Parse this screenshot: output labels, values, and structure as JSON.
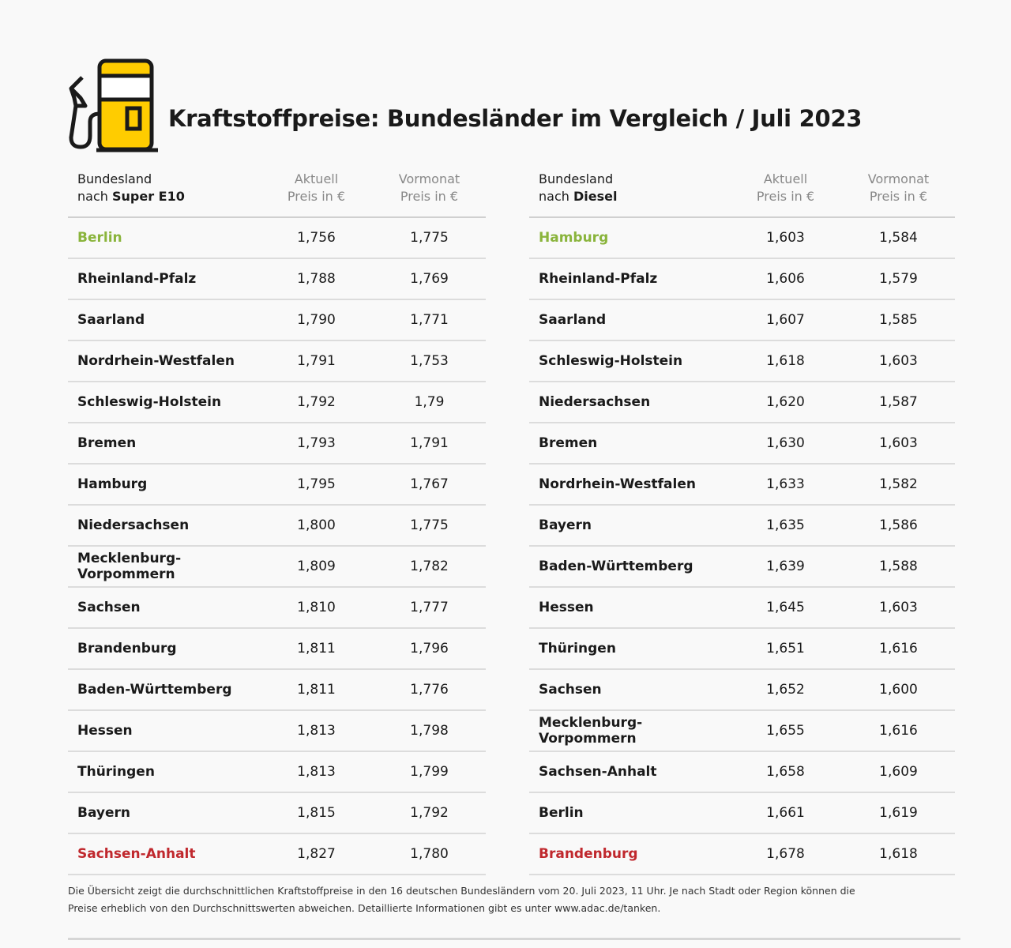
{
  "title": "Kraftstoffpreise: Bundesländer im Vergleich / Juli 2023",
  "colors": {
    "accent": "#ffcc00",
    "best": "#8ab43c",
    "worst": "#c0282d"
  },
  "icon": "fuel-pump-icon",
  "tables": [
    {
      "header": {
        "line1": "Bundesland",
        "line2_prefix": "nach ",
        "line2_bold": "Super E10",
        "current_1": "Aktuell",
        "current_2": "Preis in €",
        "prev_1": "Vormonat",
        "prev_2": "Preis in €"
      },
      "rows": [
        {
          "state": "Berlin",
          "current": "1,756",
          "previous": "1,775",
          "highlight": "best"
        },
        {
          "state": "Rheinland-Pfalz",
          "current": "1,788",
          "previous": "1,769"
        },
        {
          "state": "Saarland",
          "current": "1,790",
          "previous": "1,771"
        },
        {
          "state": "Nordrhein-Westfalen",
          "current": "1,791",
          "previous": "1,753"
        },
        {
          "state": "Schleswig-Holstein",
          "current": "1,792",
          "previous": "1,79"
        },
        {
          "state": "Bremen",
          "current": "1,793",
          "previous": "1,791"
        },
        {
          "state": "Hamburg",
          "current": "1,795",
          "previous": "1,767"
        },
        {
          "state": "Niedersachsen",
          "current": "1,800",
          "previous": "1,775"
        },
        {
          "state": "Mecklenburg-Vorpommern",
          "current": "1,809",
          "previous": "1,782"
        },
        {
          "state": "Sachsen",
          "current": "1,810",
          "previous": "1,777"
        },
        {
          "state": "Brandenburg",
          "current": "1,811",
          "previous": "1,796"
        },
        {
          "state": "Baden-Württemberg",
          "current": "1,811",
          "previous": "1,776"
        },
        {
          "state": "Hessen",
          "current": "1,813",
          "previous": "1,798"
        },
        {
          "state": "Thüringen",
          "current": "1,813",
          "previous": "1,799"
        },
        {
          "state": "Bayern",
          "current": "1,815",
          "previous": "1,792"
        },
        {
          "state": "Sachsen-Anhalt",
          "current": "1,827",
          "previous": "1,780",
          "highlight": "worst"
        }
      ]
    },
    {
      "header": {
        "line1": "Bundesland",
        "line2_prefix": "nach ",
        "line2_bold": "Diesel",
        "current_1": "Aktuell",
        "current_2": "Preis in €",
        "prev_1": "Vormonat",
        "prev_2": "Preis in €"
      },
      "rows": [
        {
          "state": "Hamburg",
          "current": "1,603",
          "previous": "1,584",
          "highlight": "best"
        },
        {
          "state": "Rheinland-Pfalz",
          "current": "1,606",
          "previous": "1,579"
        },
        {
          "state": "Saarland",
          "current": "1,607",
          "previous": "1,585"
        },
        {
          "state": "Schleswig-Holstein",
          "current": "1,618",
          "previous": "1,603"
        },
        {
          "state": "Niedersachsen",
          "current": "1,620",
          "previous": "1,587"
        },
        {
          "state": "Bremen",
          "current": "1,630",
          "previous": "1,603"
        },
        {
          "state": "Nordrhein-Westfalen",
          "current": "1,633",
          "previous": "1,582"
        },
        {
          "state": "Bayern",
          "current": "1,635",
          "previous": "1,586"
        },
        {
          "state": "Baden-Württemberg",
          "current": "1,639",
          "previous": "1,588"
        },
        {
          "state": "Hessen",
          "current": "1,645",
          "previous": "1,603"
        },
        {
          "state": "Thüringen",
          "current": "1,651",
          "previous": "1,616"
        },
        {
          "state": "Sachsen",
          "current": "1,652",
          "previous": "1,600"
        },
        {
          "state": "Mecklenburg-Vorpommern",
          "current": "1,655",
          "previous": "1,616"
        },
        {
          "state": "Sachsen-Anhalt",
          "current": "1,658",
          "previous": "1,609"
        },
        {
          "state": "Berlin",
          "current": "1,661",
          "previous": "1,619"
        },
        {
          "state": "Brandenburg",
          "current": "1,678",
          "previous": "1,618",
          "highlight": "worst"
        }
      ]
    }
  ],
  "note": {
    "line1": "Die Übersicht zeigt die durchschnittlichen Kraftstoffpreise in den 16 deutschen Bundesländern vom 20. Juli 2023, 11 Uhr. Je nach Stadt oder Region können die",
    "line2": "Preise erheblich von den Durchschnittswerten abweichen. Detaillierte Informationen gibt es unter www.adac.de/tanken."
  }
}
